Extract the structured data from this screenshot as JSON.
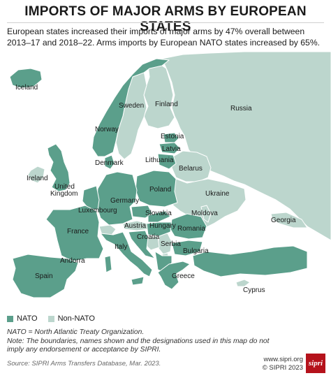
{
  "title": "IMPORTS OF MAJOR ARMS BY EUROPEAN STATES",
  "subtitle": "European states increased their imports of major arms by 47% overall between 2013–17 and 2018–22. Arms imports by European NATO states increased by 65%.",
  "colors": {
    "nato": "#5b9f8b",
    "non_nato": "#bcd6cd",
    "border": "#ffffff",
    "title_rule": "#cfcfcf",
    "logo": "#b5121b"
  },
  "map": {
    "labels": {
      "iceland": "Iceland",
      "norway": "Norway",
      "sweden": "Sweden",
      "finland": "Finland",
      "russia": "Russia",
      "estonia": "Estonia",
      "latvia": "Latvia",
      "denmark": "Denmark",
      "lithuania": "Lithuania",
      "belarus": "Belarus",
      "ireland": "Ireland",
      "uk_line1": "United",
      "uk_line2": "Kingdom",
      "germany": "Germany",
      "poland": "Poland",
      "ukraine": "Ukraine",
      "luxembourg": "Luxembourg",
      "slovakia": "Slovakia",
      "moldova": "Moldova",
      "france": "France",
      "austria": "Austria",
      "hungary": "Hungary",
      "romania": "Romania",
      "georgia": "Georgia",
      "croatia": "Croatia",
      "serbia": "Serbia",
      "italy": "Italy",
      "bulgaria": "Bulgaria",
      "andorra": "Andorra",
      "spain": "Spain",
      "greece": "Greece",
      "cyprus": "Cyprus"
    }
  },
  "legend": {
    "nato": "NATO",
    "non_nato": "Non-NATO"
  },
  "notes": {
    "line1": "NATO = North Atlantic Treaty Organization.",
    "line2": "Note: The boundaries, names shown and the designations used in this map do not imply any endorsement or acceptance by SIPRI."
  },
  "source": "Source: SIPRI Arms Transfers Database, Mar. 2023.",
  "credit": {
    "url": "www.sipri.org",
    "copyright": "© SIPRI 2023"
  },
  "logo_text": "sipri"
}
